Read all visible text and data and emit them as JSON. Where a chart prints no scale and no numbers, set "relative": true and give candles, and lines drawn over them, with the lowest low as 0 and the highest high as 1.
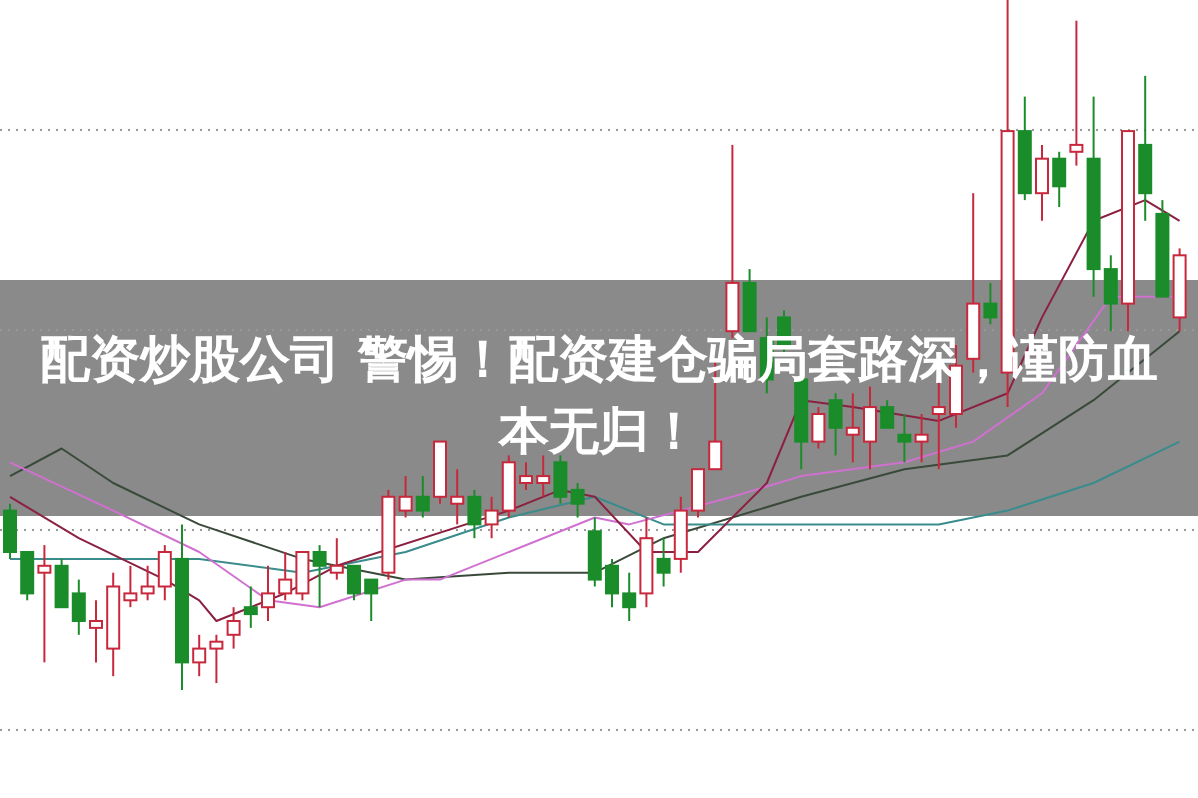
{
  "chart_data": {
    "type": "candlestick",
    "title": "配资炒股公司 警惕！配资建仓骗局套路深，谨防血本无归！",
    "relative": true,
    "grid": "y",
    "categories": [
      null,
      null,
      null,
      null,
      null,
      null,
      null,
      null,
      null,
      null,
      null,
      null,
      null,
      null,
      null,
      null,
      null,
      null,
      null,
      null,
      null,
      null,
      null,
      null,
      null,
      null,
      null,
      null,
      null,
      null,
      null,
      null,
      null,
      null,
      null,
      null,
      null,
      null,
      null,
      null,
      null,
      null,
      null,
      null,
      null,
      null,
      null,
      null,
      null,
      null,
      null,
      null,
      null,
      null,
      null,
      null,
      null,
      null,
      null,
      null,
      null,
      null,
      null,
      null,
      null,
      null,
      null,
      null,
      null
    ],
    "ohlc": [
      [
        0.26,
        0.27,
        0.19,
        0.2
      ],
      [
        0.2,
        0.2,
        0.13,
        0.14
      ],
      [
        0.17,
        0.21,
        0.04,
        0.18
      ],
      [
        0.18,
        0.19,
        0.12,
        0.12
      ],
      [
        0.14,
        0.16,
        0.08,
        0.1
      ],
      [
        0.09,
        0.13,
        0.04,
        0.1
      ],
      [
        0.06,
        0.17,
        0.02,
        0.15
      ],
      [
        0.13,
        0.18,
        0.12,
        0.14
      ],
      [
        0.14,
        0.18,
        0.13,
        0.15
      ],
      [
        0.15,
        0.21,
        0.13,
        0.2
      ],
      [
        0.19,
        0.24,
        0,
        0.04
      ],
      [
        0.04,
        0.08,
        0.02,
        0.06
      ],
      [
        0.06,
        0.08,
        0.01,
        0.07
      ],
      [
        0.08,
        0.12,
        0.06,
        0.1
      ],
      [
        0.12,
        0.15,
        0.09,
        0.11
      ],
      [
        0.12,
        0.18,
        0.1,
        0.14
      ],
      [
        0.14,
        0.2,
        0.13,
        0.16
      ],
      [
        0.14,
        0.2,
        0.13,
        0.2
      ],
      [
        0.2,
        0.21,
        0.12,
        0.18
      ],
      [
        0.17,
        0.22,
        0.16,
        0.18
      ],
      [
        0.18,
        0.18,
        0.13,
        0.14
      ],
      [
        0.16,
        0.16,
        0.1,
        0.14
      ],
      [
        0.17,
        0.29,
        0.16,
        0.28
      ],
      [
        0.26,
        0.31,
        0.25,
        0.28
      ],
      [
        0.28,
        0.31,
        0.25,
        0.26
      ],
      [
        0.28,
        0.36,
        0.27,
        0.36
      ],
      [
        0.27,
        0.32,
        0.24,
        0.28
      ],
      [
        0.28,
        0.29,
        0.22,
        0.24
      ],
      [
        0.24,
        0.28,
        0.22,
        0.26
      ],
      [
        0.26,
        0.34,
        0.25,
        0.33
      ],
      [
        0.3,
        0.33,
        0.29,
        0.31
      ],
      [
        0.3,
        0.34,
        0.28,
        0.31
      ],
      [
        0.33,
        0.34,
        0.27,
        0.28
      ],
      [
        0.29,
        0.3,
        0.25,
        0.27
      ],
      [
        0.23,
        0.25,
        0.15,
        0.16
      ],
      [
        0.18,
        0.19,
        0.12,
        0.14
      ],
      [
        0.14,
        0.17,
        0.1,
        0.12
      ],
      [
        0.14,
        0.25,
        0.12,
        0.22
      ],
      [
        0.19,
        0.22,
        0.15,
        0.17
      ],
      [
        0.19,
        0.28,
        0.17,
        0.26
      ],
      [
        0.26,
        0.32,
        0.25,
        0.32
      ],
      [
        0.32,
        0.48,
        0.32,
        0.36
      ],
      [
        0.52,
        0.79,
        0.51,
        0.59
      ],
      [
        0.59,
        0.61,
        0.52,
        0.52
      ],
      [
        0.51,
        0.54,
        0.43,
        0.45
      ],
      [
        0.54,
        0.55,
        0.49,
        0.5
      ],
      [
        0.45,
        0.46,
        0.32,
        0.36
      ],
      [
        0.36,
        0.41,
        0.35,
        0.4
      ],
      [
        0.42,
        0.43,
        0.34,
        0.38
      ],
      [
        0.37,
        0.43,
        0.33,
        0.38
      ],
      [
        0.36,
        0.44,
        0.32,
        0.41
      ],
      [
        0.41,
        0.42,
        0.38,
        0.38
      ],
      [
        0.37,
        0.4,
        0.33,
        0.36
      ],
      [
        0.36,
        0.4,
        0.33,
        0.37
      ],
      [
        0.4,
        0.45,
        0.32,
        0.41
      ],
      [
        0.4,
        0.5,
        0.38,
        0.47
      ],
      [
        0.48,
        0.72,
        0.46,
        0.56
      ],
      [
        0.56,
        0.59,
        0.53,
        0.54
      ],
      [
        0.46,
        1,
        0.41,
        0.81
      ],
      [
        0.81,
        0.86,
        0.71,
        0.72
      ],
      [
        0.72,
        0.79,
        0.68,
        0.77
      ],
      [
        0.77,
        0.78,
        0.7,
        0.73
      ],
      [
        0.78,
        0.97,
        0.76,
        0.79
      ],
      [
        0.77,
        0.86,
        0.57,
        0.61
      ],
      [
        0.61,
        0.63,
        0.52,
        0.56
      ],
      [
        0.56,
        0.81,
        0.52,
        0.81
      ],
      [
        0.79,
        0.89,
        0.68,
        0.72
      ],
      [
        0.69,
        0.71,
        0.57,
        0.57
      ],
      [
        0.54,
        0.64,
        0.52,
        0.63
      ]
    ],
    "series": [
      {
        "type": "line",
        "color": "#3a4a3a",
        "values": [
          0.31,
          null,
          null,
          0.35,
          null,
          null,
          0.3,
          null,
          null,
          null,
          null,
          0.24,
          null,
          null,
          null,
          null,
          null,
          0.19,
          null,
          null,
          null,
          null,
          null,
          0.16,
          null,
          null,
          null,
          null,
          null,
          0.17,
          null,
          null,
          null,
          null,
          0.17,
          null,
          null,
          null,
          0.22,
          null,
          null,
          null,
          null,
          null,
          null,
          null,
          0.28,
          null,
          null,
          null,
          null,
          null,
          0.32,
          null,
          null,
          null,
          null,
          null,
          0.34,
          null,
          null,
          null,
          null,
          0.42,
          null,
          null,
          null,
          null,
          0.52
        ]
      },
      {
        "type": "line",
        "color": "#3a8c8c",
        "values": [
          0.19,
          null,
          null,
          null,
          null,
          null,
          null,
          null,
          null,
          null,
          null,
          0.19,
          null,
          null,
          null,
          null,
          null,
          0.17,
          null,
          null,
          null,
          null,
          null,
          0.2,
          null,
          null,
          null,
          null,
          null,
          0.25,
          null,
          null,
          null,
          null,
          0.28,
          null,
          null,
          null,
          0.24,
          null,
          null,
          null,
          null,
          null,
          null,
          null,
          0.24,
          null,
          null,
          null,
          null,
          null,
          null,
          null,
          0.24,
          null,
          null,
          null,
          0.26,
          null,
          null,
          null,
          null,
          0.3,
          null,
          null,
          null,
          null,
          0.36
        ]
      },
      {
        "type": "line",
        "color": "#d070d0",
        "values": [
          0.33,
          null,
          null,
          null,
          null,
          null,
          0.26,
          null,
          null,
          null,
          null,
          0.2,
          null,
          null,
          null,
          0.13,
          null,
          null,
          0.12,
          null,
          null,
          null,
          null,
          0.16,
          null,
          0.16,
          null,
          null,
          null,
          null,
          null,
          null,
          null,
          null,
          0.25,
          null,
          0.24,
          null,
          null,
          null,
          null,
          null,
          0.28,
          null,
          null,
          null,
          0.31,
          null,
          null,
          null,
          null,
          null,
          0.33,
          null,
          null,
          null,
          0.36,
          null,
          null,
          null,
          0.43,
          null,
          null,
          null,
          0.57,
          null,
          null,
          null,
          0.57
        ]
      },
      {
        "type": "line",
        "color": "#8b2040",
        "values": [
          0.28,
          null,
          null,
          null,
          0.22,
          null,
          null,
          null,
          null,
          0.16,
          null,
          0.13,
          0.1,
          null,
          null,
          null,
          0.14,
          null,
          null,
          0.18,
          null,
          null,
          null,
          null,
          null,
          null,
          null,
          null,
          null,
          0.26,
          null,
          null,
          0.29,
          null,
          0.28,
          null,
          null,
          0.2,
          null,
          null,
          0.2,
          null,
          null,
          null,
          0.3,
          null,
          0.42,
          null,
          null,
          0.41,
          null,
          null,
          null,
          null,
          0.39,
          null,
          null,
          null,
          0.43,
          null,
          0.54,
          null,
          null,
          0.68,
          null,
          null,
          0.71,
          null,
          0.68
        ]
      }
    ]
  }
}
